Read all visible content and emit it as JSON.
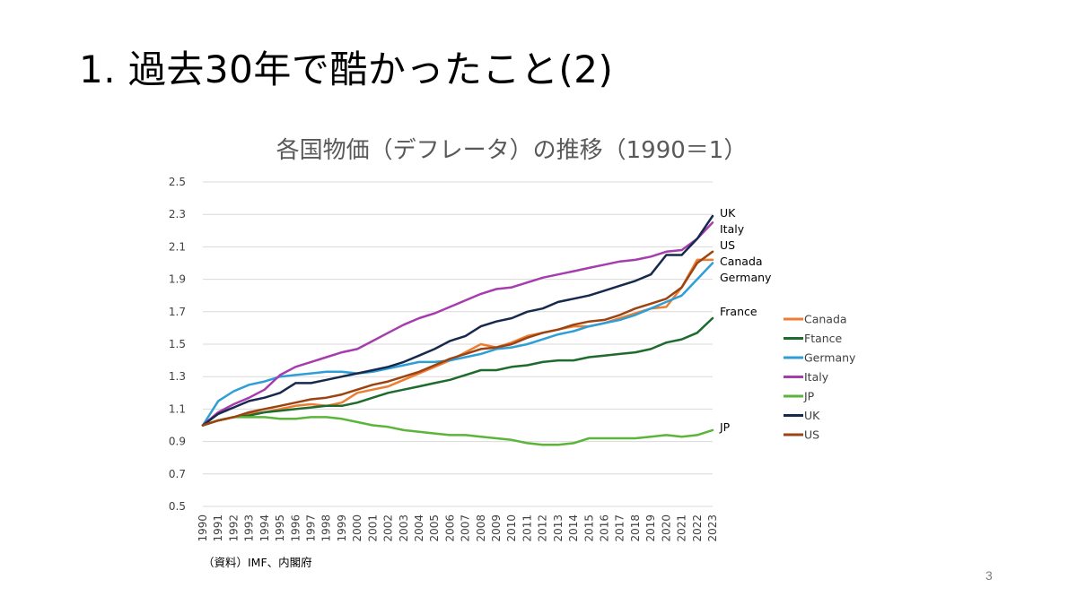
{
  "slide": {
    "title": "1. 過去30年で酷かったこと(2)",
    "page_number": "3"
  },
  "chart_data": {
    "type": "line",
    "title": "各国物価（デフレータ）の推移（1990＝1）",
    "source_note": "（資料）IMF、内閣府",
    "ylim": [
      0.5,
      2.5
    ],
    "yticks": [
      "2.5",
      "2.3",
      "2.1",
      "1.9",
      "1.7",
      "1.5",
      "1.3",
      "1.1",
      "0.9",
      "0.7",
      "0.5"
    ],
    "xlabel": "",
    "ylabel": "",
    "x": [
      "1990",
      "1991",
      "1992",
      "1993",
      "1994",
      "1995",
      "1996",
      "1997",
      "1998",
      "1999",
      "2000",
      "2001",
      "2002",
      "2003",
      "2004",
      "2005",
      "2006",
      "2007",
      "2008",
      "2009",
      "2010",
      "2011",
      "2012",
      "2013",
      "2014",
      "2015",
      "2016",
      "2017",
      "2018",
      "2019",
      "2020",
      "2021",
      "2022",
      "2023"
    ],
    "series": [
      {
        "name": "Canada",
        "legend": "Canada",
        "end_label": "Canada",
        "color": "#ED7D31",
        "values": [
          1.0,
          1.03,
          1.05,
          1.07,
          1.08,
          1.1,
          1.12,
          1.13,
          1.12,
          1.14,
          1.2,
          1.22,
          1.24,
          1.28,
          1.32,
          1.36,
          1.4,
          1.45,
          1.5,
          1.48,
          1.51,
          1.55,
          1.57,
          1.59,
          1.61,
          1.61,
          1.63,
          1.66,
          1.69,
          1.72,
          1.73,
          1.85,
          2.02,
          2.02
        ]
      },
      {
        "name": "France",
        "legend": "Ftance",
        "end_label": "France",
        "color": "#1E6B2E",
        "values": [
          1.0,
          1.03,
          1.05,
          1.06,
          1.08,
          1.09,
          1.1,
          1.11,
          1.12,
          1.12,
          1.14,
          1.17,
          1.2,
          1.22,
          1.24,
          1.26,
          1.28,
          1.31,
          1.34,
          1.34,
          1.36,
          1.37,
          1.39,
          1.4,
          1.4,
          1.42,
          1.43,
          1.44,
          1.45,
          1.47,
          1.51,
          1.53,
          1.57,
          1.66
        ]
      },
      {
        "name": "Germany",
        "legend": "Germany",
        "end_label": "Germany",
        "color": "#2E9ED6",
        "values": [
          1.0,
          1.15,
          1.21,
          1.25,
          1.27,
          1.3,
          1.31,
          1.32,
          1.33,
          1.33,
          1.32,
          1.33,
          1.35,
          1.37,
          1.39,
          1.39,
          1.4,
          1.42,
          1.44,
          1.47,
          1.48,
          1.5,
          1.53,
          1.56,
          1.58,
          1.61,
          1.63,
          1.65,
          1.68,
          1.72,
          1.76,
          1.8,
          1.9,
          2.0
        ]
      },
      {
        "name": "Italy",
        "legend": "Italy",
        "end_label": "Italy",
        "color": "#A63DAE",
        "values": [
          1.0,
          1.08,
          1.13,
          1.17,
          1.22,
          1.31,
          1.36,
          1.39,
          1.42,
          1.45,
          1.47,
          1.52,
          1.57,
          1.62,
          1.66,
          1.69,
          1.73,
          1.77,
          1.81,
          1.84,
          1.85,
          1.88,
          1.91,
          1.93,
          1.95,
          1.97,
          1.99,
          2.01,
          2.02,
          2.04,
          2.07,
          2.08,
          2.15,
          2.25
        ]
      },
      {
        "name": "JP",
        "legend": "JP",
        "end_label": "JP",
        "color": "#5BB53A",
        "values": [
          1.0,
          1.03,
          1.05,
          1.05,
          1.05,
          1.04,
          1.04,
          1.05,
          1.05,
          1.04,
          1.02,
          1.0,
          0.99,
          0.97,
          0.96,
          0.95,
          0.94,
          0.94,
          0.93,
          0.92,
          0.91,
          0.89,
          0.88,
          0.88,
          0.89,
          0.92,
          0.92,
          0.92,
          0.92,
          0.93,
          0.94,
          0.93,
          0.94,
          0.97
        ]
      },
      {
        "name": "UK",
        "legend": "UK",
        "end_label": "UK",
        "color": "#17294D",
        "values": [
          1.0,
          1.07,
          1.11,
          1.15,
          1.17,
          1.2,
          1.26,
          1.26,
          1.28,
          1.3,
          1.32,
          1.34,
          1.36,
          1.39,
          1.43,
          1.47,
          1.52,
          1.55,
          1.61,
          1.64,
          1.66,
          1.7,
          1.72,
          1.76,
          1.78,
          1.8,
          1.83,
          1.86,
          1.89,
          1.93,
          2.05,
          2.05,
          2.15,
          2.29
        ]
      },
      {
        "name": "US",
        "legend": "US",
        "end_label": "US",
        "color": "#9C4312",
        "values": [
          1.0,
          1.03,
          1.05,
          1.08,
          1.1,
          1.12,
          1.14,
          1.16,
          1.17,
          1.19,
          1.22,
          1.25,
          1.27,
          1.3,
          1.33,
          1.37,
          1.41,
          1.44,
          1.47,
          1.48,
          1.5,
          1.54,
          1.57,
          1.59,
          1.62,
          1.64,
          1.65,
          1.68,
          1.72,
          1.75,
          1.78,
          1.85,
          2.0,
          2.07
        ]
      }
    ]
  }
}
